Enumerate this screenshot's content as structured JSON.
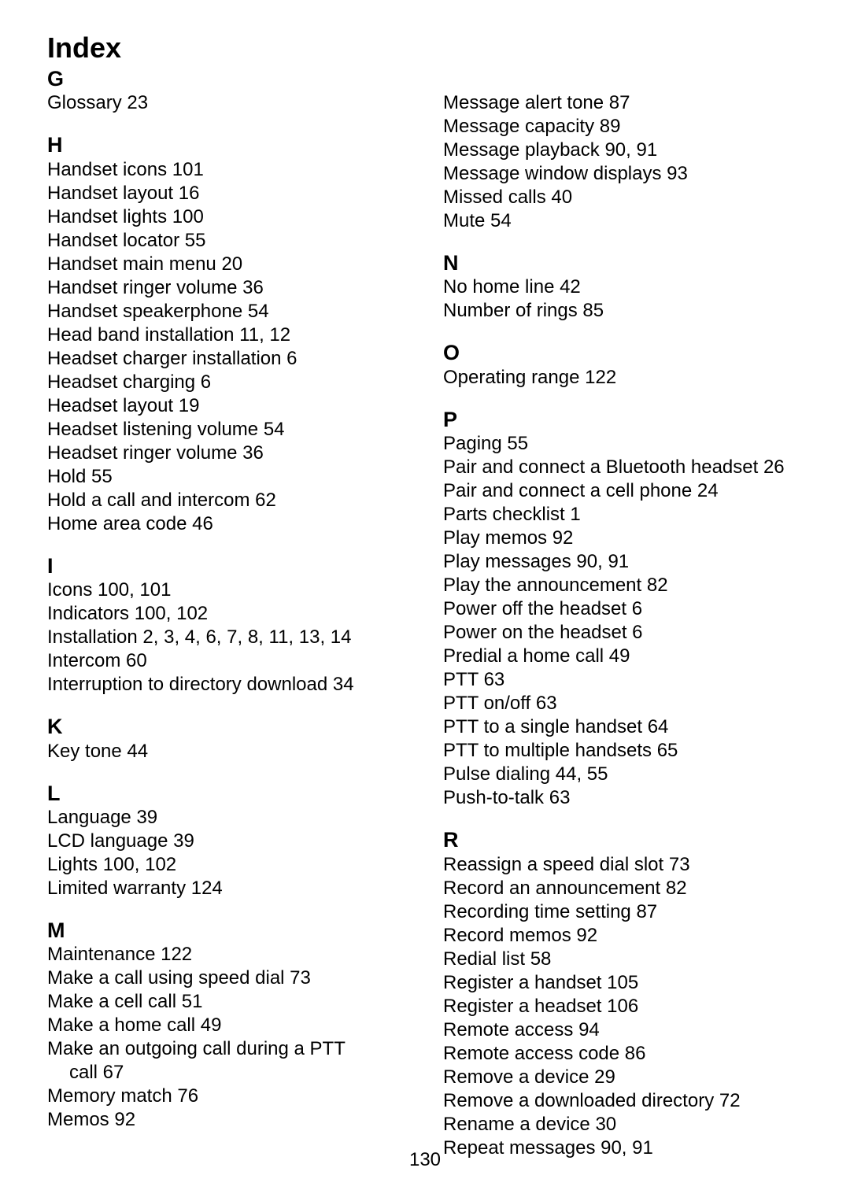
{
  "title": "Index",
  "pageNumber": "130",
  "columns": [
    {
      "sections": [
        {
          "letter": "G",
          "first": true,
          "entries": [
            {
              "label": "Glossary",
              "pages": "23"
            }
          ]
        },
        {
          "letter": "H",
          "entries": [
            {
              "label": "Handset icons",
              "pages": "101"
            },
            {
              "label": "Handset layout",
              "pages": "16"
            },
            {
              "label": "Handset lights",
              "pages": "100"
            },
            {
              "label": "Handset locator",
              "pages": "55"
            },
            {
              "label": "Handset main menu",
              "pages": "20"
            },
            {
              "label": "Handset ringer volume",
              "pages": "36"
            },
            {
              "label": "Handset speakerphone",
              "pages": "54"
            },
            {
              "label": "Head band installation",
              "pages": "11, 12"
            },
            {
              "label": "Headset charger installation",
              "pages": "6"
            },
            {
              "label": "Headset charging",
              "pages": "6"
            },
            {
              "label": "Headset layout",
              "pages": "19"
            },
            {
              "label": "Headset listening volume",
              "pages": "54"
            },
            {
              "label": "Headset ringer volume",
              "pages": "36"
            },
            {
              "label": "Hold",
              "pages": "55"
            },
            {
              "label": "Hold a call and intercom",
              "pages": "62"
            },
            {
              "label": "Home area code",
              "pages": "46"
            }
          ]
        },
        {
          "letter": "I",
          "entries": [
            {
              "label": "Icons",
              "pages": "100, 101"
            },
            {
              "label": "Indicators",
              "pages": "100, 102"
            },
            {
              "label": "Installation",
              "pages": "2, 3, 4, 6, 7, 8, 11, 13, 14"
            },
            {
              "label": "Intercom",
              "pages": "60"
            },
            {
              "label": "Interruption to directory download",
              "pages": "34"
            }
          ]
        },
        {
          "letter": "K",
          "entries": [
            {
              "label": "Key tone",
              "pages": "44"
            }
          ]
        },
        {
          "letter": "L",
          "entries": [
            {
              "label": "Language",
              "pages": "39"
            },
            {
              "label": "LCD language",
              "pages": "39"
            },
            {
              "label": "Lights",
              "pages": "100, 102"
            },
            {
              "label": "Limited warranty",
              "pages": "124"
            }
          ]
        },
        {
          "letter": "M",
          "entries": [
            {
              "label": "Maintenance",
              "pages": "122"
            },
            {
              "label": "Make a call using speed dial",
              "pages": "73"
            },
            {
              "label": "Make a cell call",
              "pages": "51"
            },
            {
              "label": "Make a home call",
              "pages": "49"
            },
            {
              "label": "Make an outgoing call during a PTT",
              "cont": "call",
              "pages": "67"
            },
            {
              "label": "Memory match",
              "pages": "76"
            },
            {
              "label": "Memos",
              "pages": "92"
            }
          ]
        }
      ]
    },
    {
      "sections": [
        {
          "letter": "",
          "first": true,
          "entries": [
            {
              "label": "Message alert tone",
              "pages": "87"
            },
            {
              "label": "Message capacity",
              "pages": "89"
            },
            {
              "label": "Message playback",
              "pages": "90, 91"
            },
            {
              "label": "Message window displays",
              "pages": "93"
            },
            {
              "label": "Missed calls",
              "pages": "40"
            },
            {
              "label": "Mute",
              "pages": "54"
            }
          ]
        },
        {
          "letter": "N",
          "entries": [
            {
              "label": "No home line",
              "pages": "42"
            },
            {
              "label": "Number of rings",
              "pages": "85"
            }
          ]
        },
        {
          "letter": "O",
          "entries": [
            {
              "label": "Operating range",
              "pages": "122"
            }
          ]
        },
        {
          "letter": "P",
          "entries": [
            {
              "label": "Paging",
              "pages": "55"
            },
            {
              "label": "Pair and connect a Bluetooth headset",
              "pages": "26"
            },
            {
              "label": "Pair and connect a cell phone",
              "pages": "24"
            },
            {
              "label": "Parts checklist",
              "pages": "1"
            },
            {
              "label": "Play memos",
              "pages": "92"
            },
            {
              "label": "Play messages",
              "pages": "90, 91"
            },
            {
              "label": "Play the announcement",
              "pages": "82"
            },
            {
              "label": "Power off the headset",
              "pages": "6"
            },
            {
              "label": "Power on the headset",
              "pages": "6"
            },
            {
              "label": "Predial a home call",
              "pages": "49"
            },
            {
              "label": "PTT",
              "pages": "63"
            },
            {
              "label": "PTT on/off",
              "pages": "63"
            },
            {
              "label": "PTT to a single handset",
              "pages": "64"
            },
            {
              "label": "PTT to multiple handsets",
              "pages": "65"
            },
            {
              "label": "Pulse dialing",
              "pages": "44, 55"
            },
            {
              "label": "Push-to-talk",
              "pages": "63"
            }
          ]
        },
        {
          "letter": "R",
          "entries": [
            {
              "label": "Reassign a speed dial slot",
              "pages": "73"
            },
            {
              "label": "Record an announcement",
              "pages": "82"
            },
            {
              "label": "Recording time setting",
              "pages": "87"
            },
            {
              "label": "Record memos",
              "pages": "92"
            },
            {
              "label": "Redial list",
              "pages": "58"
            },
            {
              "label": "Register a handset",
              "pages": "105"
            },
            {
              "label": "Register a headset",
              "pages": "106"
            },
            {
              "label": "Remote access",
              "pages": "94"
            },
            {
              "label": "Remote access code",
              "pages": "86"
            },
            {
              "label": "Remove a device",
              "pages": "29"
            },
            {
              "label": "Remove a downloaded directory",
              "pages": "72"
            },
            {
              "label": "Rename a device",
              "pages": "30"
            },
            {
              "label": "Repeat messages",
              "pages": "90, 91"
            }
          ]
        }
      ]
    }
  ]
}
